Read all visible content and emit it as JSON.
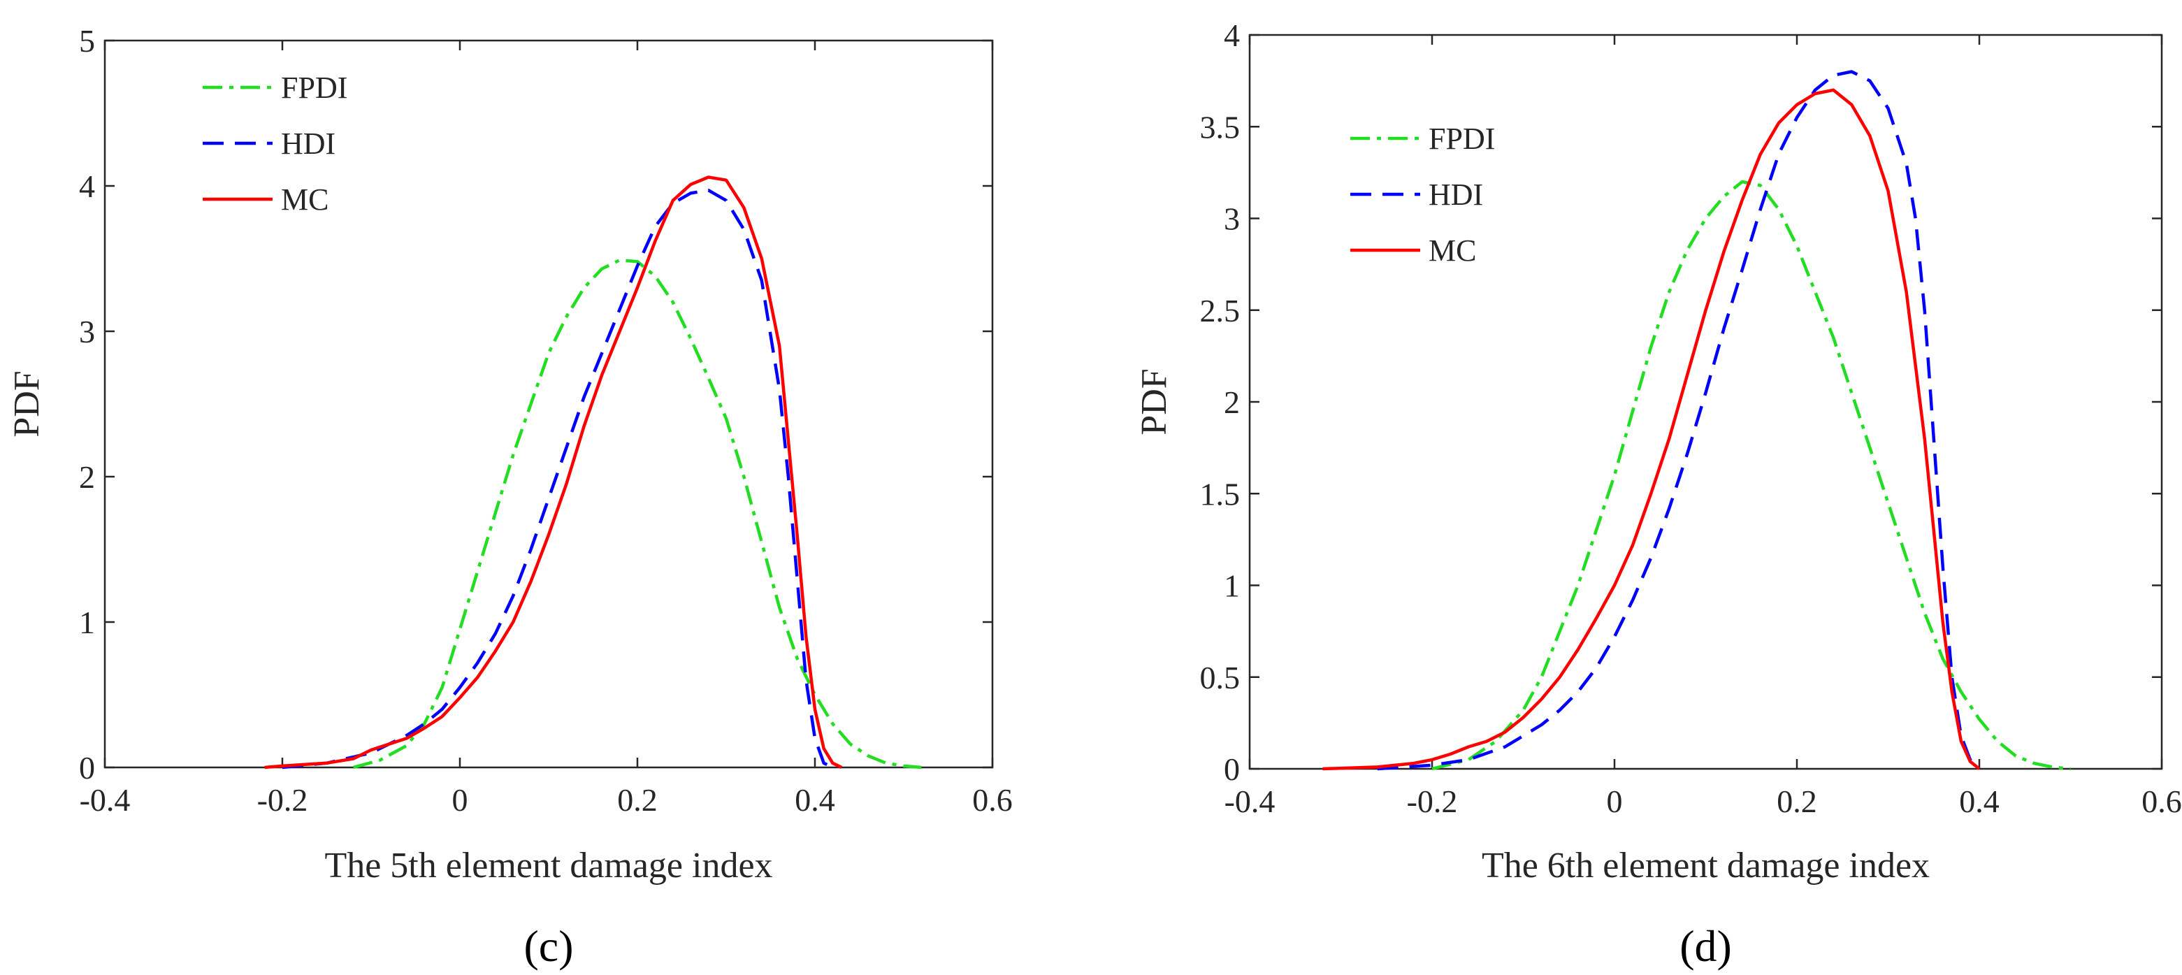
{
  "chart_data": [
    {
      "type": "line",
      "panel_label": "(c)",
      "xlabel": "The 5th element damage index",
      "ylabel": "PDF",
      "xlim": [
        -0.4,
        0.6
      ],
      "ylim": [
        0,
        5
      ],
      "xticks": [
        -0.4,
        -0.2,
        0,
        0.2,
        0.4,
        0.6
      ],
      "xtick_labels": [
        "-0.4",
        "-0.2",
        "0",
        "0.2",
        "0.4",
        "0.6"
      ],
      "yticks": [
        0,
        1,
        2,
        3,
        4,
        5
      ],
      "ytick_labels": [
        "0",
        "1",
        "2",
        "3",
        "4",
        "5"
      ],
      "legend_position": "top-left",
      "grid": false,
      "series": [
        {
          "name": "FPDI",
          "color": "#22dd22",
          "style": "dashdot",
          "x": [
            -0.12,
            -0.09,
            -0.06,
            -0.04,
            -0.02,
            0.0,
            0.02,
            0.04,
            0.06,
            0.08,
            0.1,
            0.12,
            0.14,
            0.16,
            0.18,
            0.2,
            0.22,
            0.24,
            0.26,
            0.28,
            0.3,
            0.32,
            0.34,
            0.36,
            0.38,
            0.4,
            0.42,
            0.44,
            0.46,
            0.48,
            0.5,
            0.52
          ],
          "y": [
            0.0,
            0.05,
            0.15,
            0.3,
            0.55,
            0.95,
            1.35,
            1.75,
            2.15,
            2.5,
            2.85,
            3.1,
            3.3,
            3.43,
            3.49,
            3.48,
            3.38,
            3.2,
            2.95,
            2.68,
            2.4,
            2.0,
            1.55,
            1.1,
            0.75,
            0.5,
            0.3,
            0.16,
            0.08,
            0.03,
            0.01,
            0.0
          ]
        },
        {
          "name": "HDI",
          "color": "#0000ff",
          "style": "dashed",
          "x": [
            -0.2,
            -0.15,
            -0.1,
            -0.08,
            -0.06,
            -0.04,
            -0.02,
            0.0,
            0.02,
            0.04,
            0.06,
            0.08,
            0.1,
            0.12,
            0.14,
            0.16,
            0.18,
            0.2,
            0.22,
            0.24,
            0.26,
            0.28,
            0.3,
            0.32,
            0.34,
            0.36,
            0.37,
            0.38,
            0.39,
            0.4,
            0.41,
            0.42
          ],
          "y": [
            0.0,
            0.03,
            0.1,
            0.16,
            0.22,
            0.3,
            0.4,
            0.55,
            0.72,
            0.92,
            1.18,
            1.5,
            1.85,
            2.2,
            2.55,
            2.85,
            3.15,
            3.45,
            3.72,
            3.88,
            3.95,
            3.97,
            3.9,
            3.7,
            3.35,
            2.6,
            2.0,
            1.3,
            0.6,
            0.2,
            0.03,
            0.0
          ]
        },
        {
          "name": "MC",
          "color": "#ff0000",
          "style": "solid",
          "x": [
            -0.22,
            -0.2,
            -0.15,
            -0.12,
            -0.1,
            -0.08,
            -0.06,
            -0.04,
            -0.02,
            0.0,
            0.02,
            0.04,
            0.06,
            0.08,
            0.1,
            0.12,
            0.14,
            0.16,
            0.18,
            0.2,
            0.22,
            0.24,
            0.26,
            0.28,
            0.3,
            0.32,
            0.34,
            0.36,
            0.38,
            0.39,
            0.4,
            0.41,
            0.42,
            0.43
          ],
          "y": [
            0.0,
            0.01,
            0.03,
            0.06,
            0.12,
            0.16,
            0.2,
            0.27,
            0.35,
            0.48,
            0.62,
            0.8,
            1.0,
            1.28,
            1.6,
            1.95,
            2.35,
            2.7,
            3.0,
            3.3,
            3.62,
            3.9,
            4.01,
            4.06,
            4.04,
            3.85,
            3.5,
            2.9,
            1.6,
            0.9,
            0.4,
            0.13,
            0.03,
            0.0
          ]
        }
      ]
    },
    {
      "type": "line",
      "panel_label": "(d)",
      "xlabel": "The 6th element damage index",
      "ylabel": "PDF",
      "xlim": [
        -0.4,
        0.6
      ],
      "ylim": [
        0,
        4
      ],
      "xticks": [
        -0.4,
        -0.2,
        0,
        0.2,
        0.4,
        0.6
      ],
      "xtick_labels": [
        "-0.4",
        "-0.2",
        "0",
        "0.2",
        "0.4",
        "0.6"
      ],
      "yticks": [
        0,
        0.5,
        1,
        1.5,
        2,
        2.5,
        3,
        3.5,
        4
      ],
      "ytick_labels": [
        "0",
        "0.5",
        "1",
        "1.5",
        "2",
        "2.5",
        "3",
        "3.5",
        "4"
      ],
      "legend_position": "top-left",
      "grid": false,
      "series": [
        {
          "name": "FPDI",
          "color": "#22dd22",
          "style": "dashdot",
          "x": [
            -0.2,
            -0.16,
            -0.13,
            -0.1,
            -0.08,
            -0.06,
            -0.04,
            -0.02,
            0.0,
            0.02,
            0.04,
            0.06,
            0.08,
            0.1,
            0.12,
            0.14,
            0.16,
            0.18,
            0.2,
            0.22,
            0.24,
            0.26,
            0.28,
            0.3,
            0.32,
            0.34,
            0.36,
            0.38,
            0.4,
            0.42,
            0.44,
            0.46,
            0.48,
            0.5
          ],
          "y": [
            0.0,
            0.05,
            0.15,
            0.32,
            0.5,
            0.75,
            1.0,
            1.3,
            1.6,
            1.95,
            2.3,
            2.6,
            2.83,
            3.0,
            3.12,
            3.2,
            3.18,
            3.05,
            2.85,
            2.6,
            2.35,
            2.05,
            1.75,
            1.45,
            1.15,
            0.85,
            0.6,
            0.42,
            0.27,
            0.15,
            0.07,
            0.03,
            0.01,
            0.0
          ]
        },
        {
          "name": "HDI",
          "color": "#0000ff",
          "style": "dashed",
          "x": [
            -0.26,
            -0.2,
            -0.16,
            -0.12,
            -0.1,
            -0.08,
            -0.06,
            -0.04,
            -0.02,
            0.0,
            0.02,
            0.04,
            0.06,
            0.08,
            0.1,
            0.12,
            0.14,
            0.16,
            0.18,
            0.2,
            0.22,
            0.24,
            0.26,
            0.28,
            0.3,
            0.32,
            0.33,
            0.34,
            0.35,
            0.36,
            0.37,
            0.38,
            0.39,
            0.4
          ],
          "y": [
            0.0,
            0.02,
            0.05,
            0.12,
            0.18,
            0.24,
            0.32,
            0.42,
            0.55,
            0.72,
            0.92,
            1.15,
            1.42,
            1.72,
            2.05,
            2.4,
            2.72,
            3.05,
            3.35,
            3.55,
            3.7,
            3.78,
            3.8,
            3.75,
            3.6,
            3.3,
            3.0,
            2.5,
            1.8,
            1.1,
            0.5,
            0.18,
            0.05,
            0.0
          ]
        },
        {
          "name": "MC",
          "color": "#ff0000",
          "style": "solid",
          "x": [
            -0.32,
            -0.26,
            -0.22,
            -0.2,
            -0.18,
            -0.16,
            -0.14,
            -0.12,
            -0.1,
            -0.08,
            -0.06,
            -0.04,
            -0.02,
            0.0,
            0.02,
            0.04,
            0.06,
            0.08,
            0.1,
            0.12,
            0.14,
            0.16,
            0.18,
            0.2,
            0.22,
            0.24,
            0.26,
            0.28,
            0.3,
            0.32,
            0.34,
            0.35,
            0.36,
            0.37,
            0.38,
            0.39,
            0.4
          ],
          "y": [
            0.0,
            0.01,
            0.03,
            0.05,
            0.08,
            0.12,
            0.15,
            0.2,
            0.28,
            0.38,
            0.5,
            0.65,
            0.82,
            1.0,
            1.22,
            1.5,
            1.8,
            2.15,
            2.5,
            2.82,
            3.1,
            3.35,
            3.52,
            3.62,
            3.68,
            3.7,
            3.62,
            3.45,
            3.15,
            2.6,
            1.8,
            1.3,
            0.8,
            0.42,
            0.15,
            0.04,
            0.0
          ]
        }
      ]
    }
  ]
}
